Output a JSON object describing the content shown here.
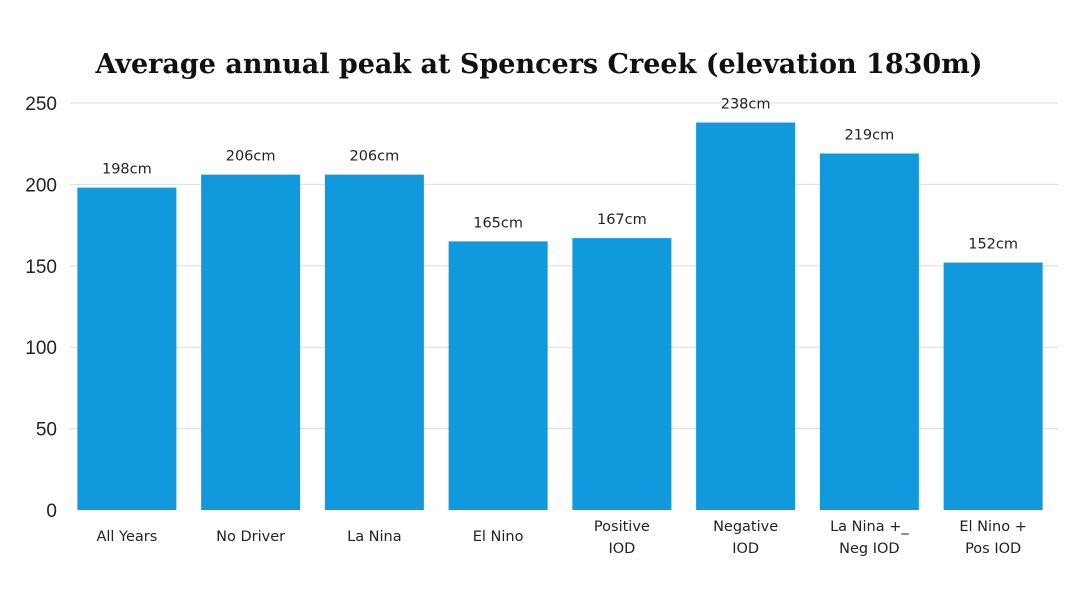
{
  "chart_data": {
    "type": "bar",
    "title": "Average annual peak at Spencers Creek (elevation 1830m)",
    "xlabel": "",
    "ylabel": "",
    "ylim": [
      0,
      250
    ],
    "yticks": [
      0,
      50,
      100,
      150,
      200,
      250
    ],
    "grid": true,
    "legend": "none",
    "bar_color": "#1199dd",
    "categories": [
      [
        "All Years"
      ],
      [
        "No Driver"
      ],
      [
        "La Nina"
      ],
      [
        "El Nino"
      ],
      [
        "Positive",
        "IOD"
      ],
      [
        "Negative",
        "IOD"
      ],
      [
        "La Nina +_",
        "Neg IOD"
      ],
      [
        "El Nino +",
        "Pos IOD"
      ]
    ],
    "values": [
      198,
      206,
      206,
      165,
      167,
      238,
      219,
      152
    ],
    "data_labels": [
      "198cm",
      "206cm",
      "206cm",
      "165cm",
      "167cm",
      "238cm",
      "219cm",
      "152cm"
    ]
  }
}
